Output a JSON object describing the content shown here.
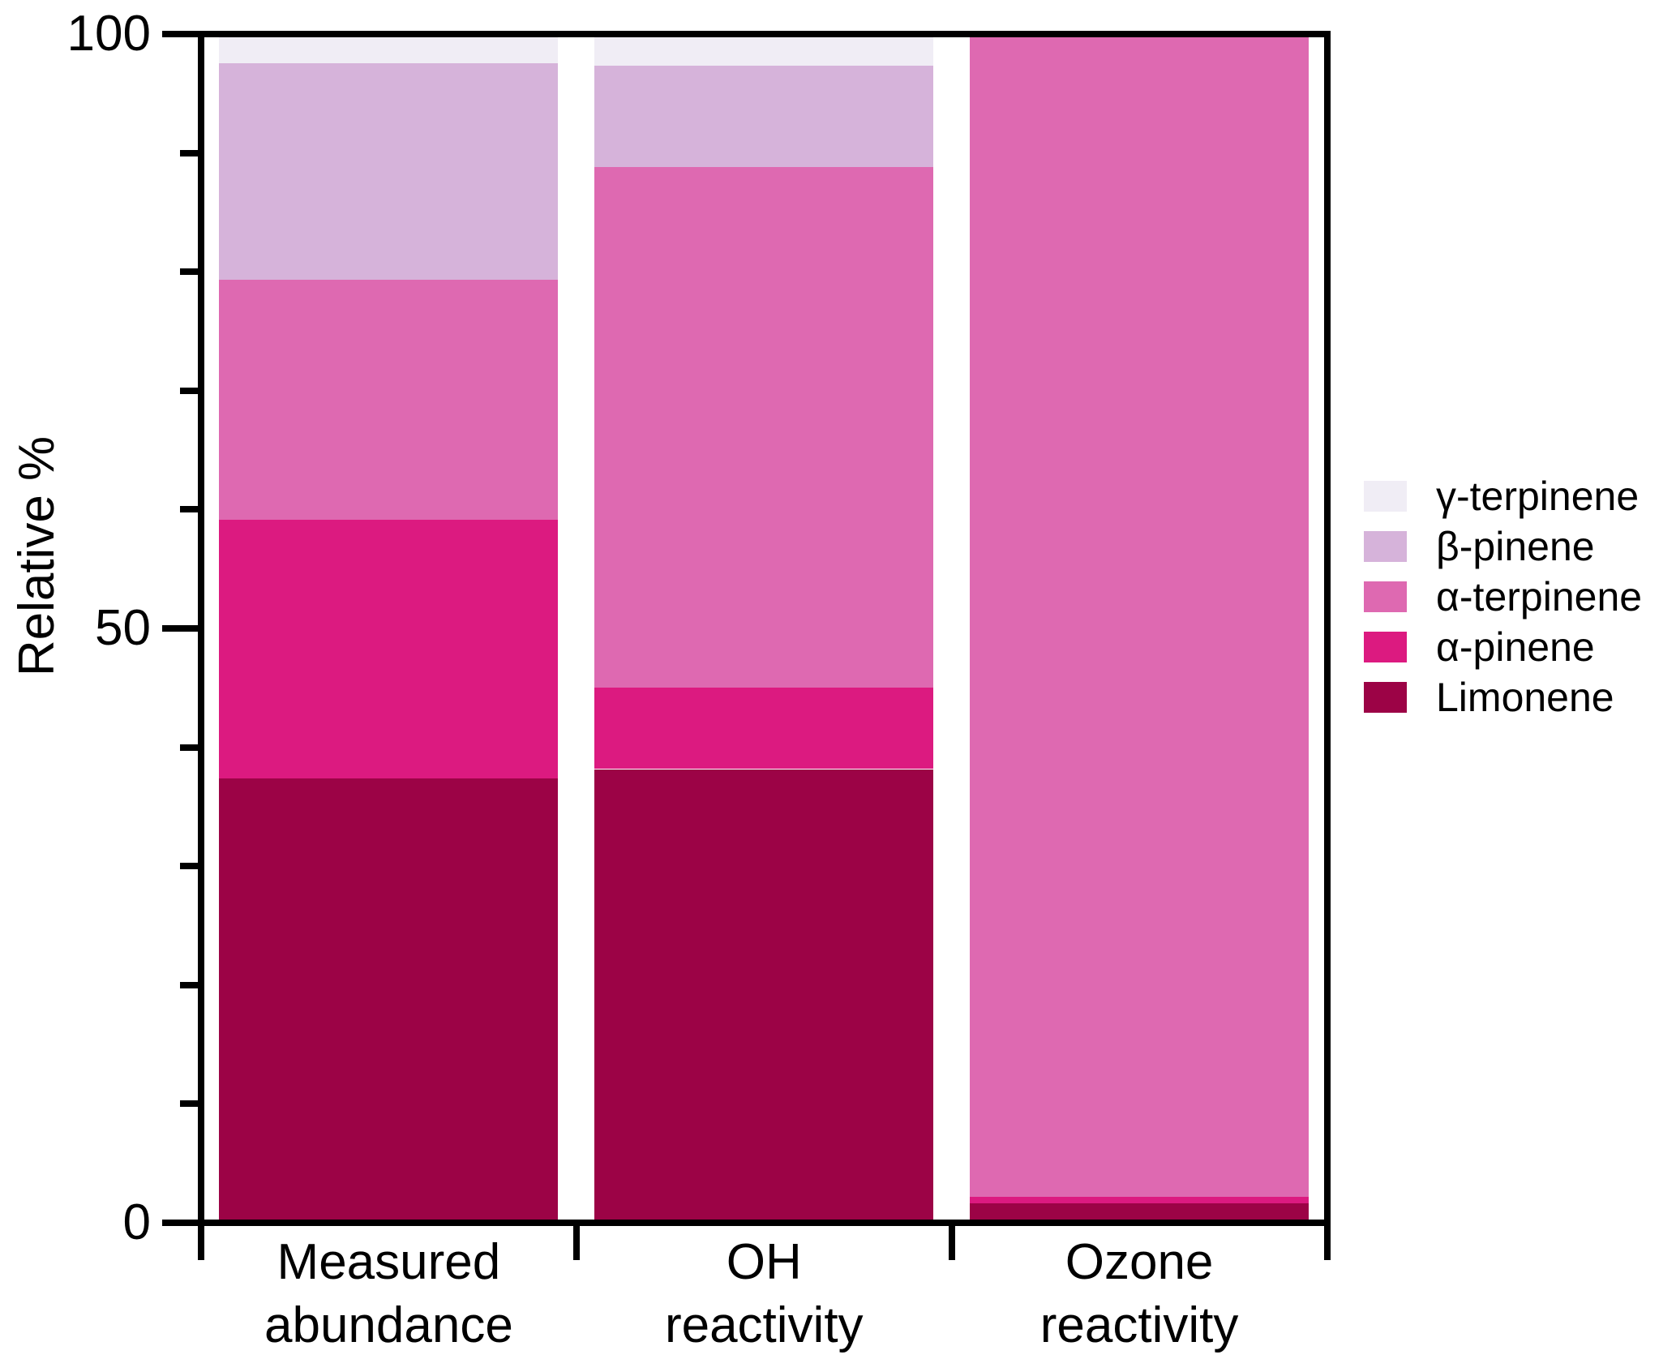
{
  "chart_data": {
    "type": "bar",
    "stacked": true,
    "title": "",
    "xlabel": "",
    "ylabel": "Relative %",
    "ylim": [
      0,
      100
    ],
    "grid": false,
    "legend_position": "right",
    "categories": [
      "Measured abundance",
      "OH reactivity",
      "Ozone reactivity"
    ],
    "category_lines": [
      [
        "Measured",
        "abundance"
      ],
      [
        "OH",
        "reactivity"
      ],
      [
        "Ozone",
        "reactivity"
      ]
    ],
    "series": [
      {
        "name": "Limonene",
        "color": "#9C0346",
        "values": [
          37.3,
          38.1,
          1.4
        ]
      },
      {
        "name": "α-pinene",
        "color": "#DC1A80",
        "values": [
          21.9,
          6.9,
          0.5
        ]
      },
      {
        "name": "α-terpinene",
        "color": "#DE69B1",
        "values": [
          20.3,
          44.0,
          98.1
        ]
      },
      {
        "name": "β-pinene",
        "color": "#D6B3DA",
        "values": [
          18.3,
          8.6,
          0
        ]
      },
      {
        "name": "γ-terpinene",
        "color": "#F0EDF5",
        "values": [
          2.2,
          2.4,
          0
        ]
      }
    ],
    "stack_order_bottom_to_top": [
      "Limonene",
      "α-pinene",
      "α-terpinene",
      "β-pinene",
      "γ-terpinene"
    ]
  },
  "y_axis": {
    "title": "Relative %",
    "major_ticks": [
      {
        "value": 0,
        "label": "0"
      },
      {
        "value": 50,
        "label": "50"
      },
      {
        "value": 100,
        "label": "100"
      }
    ],
    "minor_tick_values": [
      10,
      20,
      30,
      40,
      60,
      70,
      80,
      90
    ]
  },
  "legend": {
    "position": "right",
    "items_top_to_bottom": [
      "γ-terpinene",
      "β-pinene",
      "α-terpinene",
      "α-pinene",
      "Limonene"
    ]
  },
  "colors": {
    "axis": "#000000",
    "background": "#FFFFFF"
  }
}
